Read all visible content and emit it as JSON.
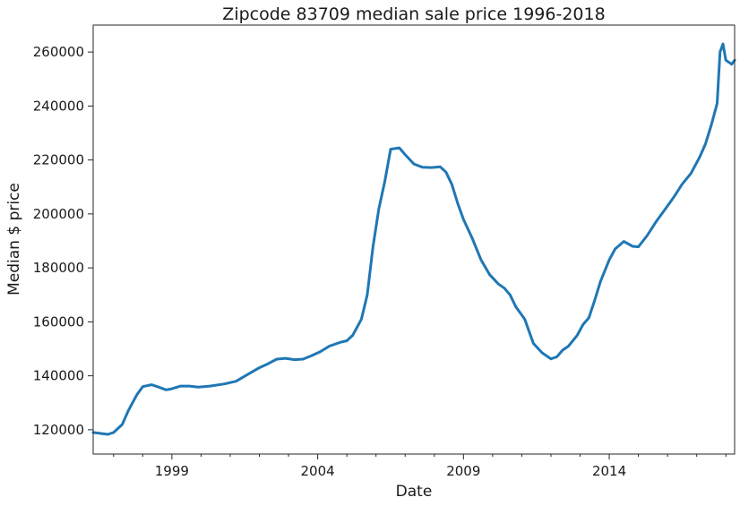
{
  "chart_data": {
    "type": "line",
    "title": "Zipcode 83709 median sale price 1996-2018",
    "xlabel": "Date",
    "ylabel": "Median $ price",
    "xlim": [
      1996.3,
      2018.3
    ],
    "ylim": [
      111000,
      270000
    ],
    "grid": false,
    "legend": "none",
    "x_ticks": [
      1999,
      2004,
      2009,
      2014
    ],
    "x_tick_labels": [
      "1999",
      "2004",
      "2009",
      "2014"
    ],
    "y_ticks": [
      120000,
      140000,
      160000,
      180000,
      200000,
      220000,
      240000,
      260000
    ],
    "y_tick_labels": [
      "120000",
      "140000",
      "160000",
      "180000",
      "200000",
      "220000",
      "240000",
      "260000"
    ],
    "line_color": "#1f77b4",
    "series": [
      {
        "x": [
          1996.3,
          1996.8,
          1997.0,
          1997.3,
          1997.5,
          1997.8,
          1998.0,
          1998.3,
          1998.5,
          1998.8,
          1999.0,
          1999.3,
          1999.6,
          1999.9,
          2000.3,
          2000.8,
          2001.2,
          2001.6,
          2002.0,
          2002.3,
          2002.6,
          2002.9,
          2003.2,
          2003.5,
          2003.8,
          2004.1,
          2004.4,
          2004.8,
          2005.0,
          2005.2,
          2005.5,
          2005.7,
          2005.9,
          2006.1,
          2006.3,
          2006.5,
          2006.8,
          2007.0,
          2007.3,
          2007.6,
          2007.9,
          2008.2,
          2008.4,
          2008.6,
          2008.8,
          2009.0,
          2009.3,
          2009.6,
          2009.9,
          2010.2,
          2010.4,
          2010.6,
          2010.8,
          2011.1,
          2011.4,
          2011.7,
          2012.0,
          2012.2,
          2012.4,
          2012.6,
          2012.9,
          2013.1,
          2013.3,
          2013.5,
          2013.7,
          2014.0,
          2014.2,
          2014.5,
          2014.8,
          2015.0,
          2015.3,
          2015.6,
          2015.9,
          2016.2,
          2016.5,
          2016.8,
          2017.1,
          2017.3,
          2017.5,
          2017.7,
          2017.8,
          2017.9,
          2018.0,
          2018.2,
          2018.3
        ],
        "y": [
          119000,
          118300,
          119000,
          122000,
          127000,
          133000,
          136000,
          136700,
          136000,
          134800,
          135200,
          136200,
          136200,
          135800,
          136200,
          137000,
          138000,
          140500,
          143000,
          144500,
          146200,
          146500,
          146000,
          146200,
          147500,
          149000,
          151000,
          152500,
          153000,
          155000,
          161000,
          170000,
          188000,
          202000,
          212000,
          224000,
          224500,
          222000,
          218500,
          217300,
          217200,
          217500,
          215500,
          211000,
          204000,
          198000,
          191000,
          183000,
          177500,
          174000,
          172500,
          170000,
          165500,
          161000,
          152000,
          148500,
          146300,
          147000,
          149500,
          151000,
          155000,
          159000,
          161500,
          168000,
          175000,
          183000,
          187000,
          189800,
          188000,
          187800,
          192000,
          197000,
          201500,
          206000,
          211000,
          215000,
          221000,
          226000,
          233000,
          241000,
          260000,
          263000,
          257000,
          255500,
          257000
        ]
      }
    ]
  }
}
